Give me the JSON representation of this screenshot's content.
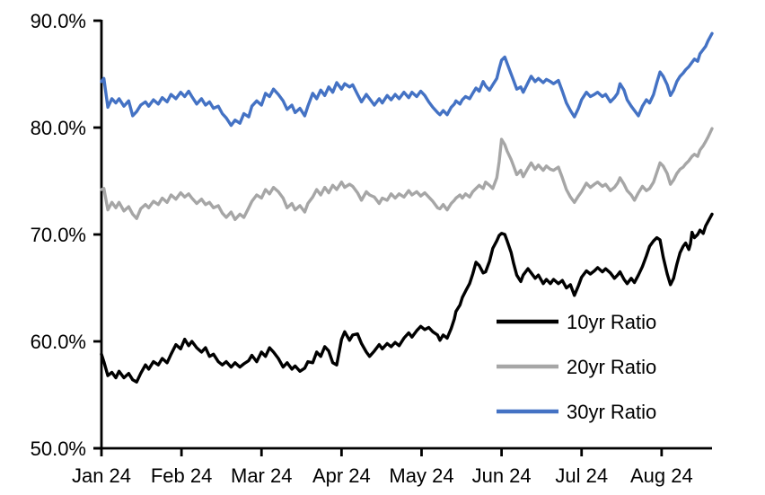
{
  "chart": {
    "background": "#FFFFFF",
    "axis_color": "#000000",
    "legend": [
      {
        "label": "10yr Ratio",
        "color": "#000000"
      },
      {
        "label": "20yr Ratio",
        "color": "#A6A6A6"
      },
      {
        "label": "30yr Ratio",
        "color": "#4472C4"
      }
    ]
  },
  "chart_data": {
    "type": "line",
    "title": "",
    "xlabel": "",
    "ylabel": "",
    "grid": false,
    "legend_position": "inside-lower-right",
    "x_unit": "months since Jan 1 2024",
    "xlim": [
      0,
      7.63
    ],
    "ylim": [
      50,
      90
    ],
    "y_ticks": [
      50,
      60,
      70,
      80,
      90
    ],
    "y_tick_labels": [
      "50.0%",
      "60.0%",
      "70.0%",
      "80.0%",
      "90.0%"
    ],
    "x_ticks": [
      0,
      1,
      2,
      3,
      4,
      5,
      6,
      7
    ],
    "x_tick_labels": [
      "Jan 24",
      "Feb 24",
      "Mar 24",
      "Apr 24",
      "May 24",
      "Jun 24",
      "Jul 24",
      "Aug 24"
    ],
    "x": [
      0.0,
      0.03,
      0.08,
      0.13,
      0.18,
      0.22,
      0.28,
      0.34,
      0.39,
      0.44,
      0.49,
      0.55,
      0.59,
      0.65,
      0.71,
      0.76,
      0.82,
      0.87,
      0.93,
      0.99,
      1.04,
      1.09,
      1.13,
      1.19,
      1.25,
      1.3,
      1.35,
      1.4,
      1.46,
      1.51,
      1.56,
      1.62,
      1.67,
      1.73,
      1.78,
      1.84,
      1.88,
      1.94,
      2.0,
      2.05,
      2.1,
      2.15,
      2.21,
      2.27,
      2.32,
      2.38,
      2.42,
      2.48,
      2.54,
      2.58,
      2.64,
      2.69,
      2.74,
      2.79,
      2.84,
      2.89,
      2.94,
      3.0,
      3.04,
      3.1,
      3.14,
      3.2,
      3.25,
      3.31,
      3.35,
      3.41,
      3.47,
      3.51,
      3.57,
      3.62,
      3.67,
      3.72,
      3.78,
      3.84,
      3.88,
      3.94,
      3.99,
      4.04,
      4.09,
      4.14,
      4.2,
      4.23,
      4.27,
      4.32,
      4.37,
      4.41,
      4.43,
      4.48,
      4.51,
      4.55,
      4.6,
      4.64,
      4.68,
      4.72,
      4.77,
      4.8,
      4.85,
      4.89,
      4.94,
      4.97,
      5.0,
      5.04,
      5.07,
      5.12,
      5.15,
      5.19,
      5.24,
      5.27,
      5.33,
      5.37,
      5.42,
      5.46,
      5.52,
      5.56,
      5.61,
      5.65,
      5.71,
      5.76,
      5.81,
      5.86,
      5.91,
      5.96,
      6.0,
      6.06,
      6.11,
      6.16,
      6.2,
      6.26,
      6.3,
      6.36,
      6.41,
      6.45,
      6.48,
      6.53,
      6.57,
      6.62,
      6.66,
      6.71,
      6.76,
      6.81,
      6.85,
      6.9,
      6.94,
      6.98,
      7.02,
      7.07,
      7.11,
      7.15,
      7.19,
      7.23,
      7.27,
      7.3,
      7.34,
      7.36,
      7.38,
      7.41,
      7.45,
      7.48,
      7.52,
      7.55,
      7.58,
      7.63
    ],
    "series": [
      {
        "name": "10yr Ratio",
        "color": "#000000",
        "values": [
          58.8,
          58.1,
          56.8,
          57.1,
          56.6,
          57.2,
          56.6,
          57.0,
          56.4,
          56.2,
          57.0,
          57.8,
          57.4,
          58.1,
          57.8,
          58.4,
          58.0,
          58.8,
          59.7,
          59.3,
          60.2,
          59.6,
          60.0,
          59.4,
          59.0,
          59.4,
          58.6,
          58.8,
          58.1,
          57.8,
          58.1,
          57.6,
          58.0,
          57.6,
          57.9,
          58.2,
          58.7,
          58.1,
          59.0,
          58.6,
          59.4,
          59.0,
          58.4,
          57.6,
          58.0,
          57.4,
          57.7,
          57.2,
          57.5,
          58.1,
          58.0,
          59.0,
          58.6,
          59.5,
          59.1,
          58.0,
          57.8,
          60.2,
          60.9,
          60.1,
          60.6,
          60.7,
          59.8,
          59.0,
          58.6,
          59.1,
          59.7,
          59.3,
          59.8,
          59.5,
          59.9,
          59.6,
          60.3,
          60.8,
          60.4,
          61.0,
          61.4,
          61.1,
          61.3,
          60.9,
          60.6,
          60.1,
          60.6,
          60.3,
          61.2,
          62.1,
          62.8,
          63.4,
          64.1,
          64.7,
          65.4,
          66.3,
          67.4,
          67.1,
          66.4,
          66.5,
          67.5,
          68.7,
          69.4,
          69.9,
          70.1,
          70.0,
          69.4,
          68.3,
          67.3,
          66.2,
          65.6,
          66.2,
          66.8,
          66.4,
          65.9,
          66.2,
          65.4,
          65.8,
          65.4,
          65.8,
          65.4,
          65.7,
          65.0,
          65.3,
          64.3,
          65.2,
          66.0,
          66.6,
          66.3,
          66.6,
          66.9,
          66.5,
          66.8,
          66.4,
          65.9,
          66.2,
          66.5,
          65.8,
          65.4,
          65.9,
          65.5,
          66.2,
          67.0,
          68.0,
          68.9,
          69.4,
          69.7,
          69.5,
          67.9,
          66.3,
          65.3,
          65.9,
          67.2,
          68.3,
          68.9,
          69.2,
          68.6,
          69.1,
          70.2,
          69.7,
          70.0,
          70.4,
          70.1,
          70.8,
          71.2,
          71.9
        ]
      },
      {
        "name": "20yr Ratio",
        "color": "#A6A6A6",
        "values": [
          74.2,
          74.3,
          72.3,
          73.0,
          72.5,
          73.0,
          72.2,
          72.6,
          71.9,
          71.5,
          72.4,
          72.8,
          72.5,
          73.1,
          72.8,
          73.4,
          73.0,
          73.7,
          73.3,
          73.9,
          73.5,
          73.8,
          73.4,
          72.9,
          73.3,
          72.8,
          73.0,
          72.5,
          72.7,
          72.0,
          71.6,
          72.1,
          71.4,
          71.9,
          71.6,
          72.5,
          73.1,
          73.7,
          73.4,
          74.2,
          73.8,
          74.4,
          74.0,
          73.4,
          72.5,
          72.9,
          72.3,
          72.7,
          72.1,
          72.9,
          73.5,
          74.2,
          73.7,
          74.4,
          73.9,
          74.6,
          74.2,
          74.9,
          74.4,
          74.7,
          74.5,
          73.9,
          73.2,
          74.0,
          73.7,
          73.5,
          72.9,
          73.4,
          73.2,
          73.8,
          73.4,
          73.8,
          73.5,
          74.1,
          73.7,
          74.0,
          73.6,
          73.9,
          73.5,
          73.1,
          72.5,
          72.4,
          72.8,
          72.3,
          72.9,
          73.2,
          73.4,
          73.7,
          73.4,
          73.8,
          73.5,
          74.0,
          74.3,
          74.6,
          74.3,
          74.9,
          74.6,
          74.3,
          75.3,
          76.8,
          78.9,
          78.4,
          77.8,
          77.0,
          76.4,
          75.6,
          76.0,
          75.4,
          76.2,
          76.7,
          76.1,
          76.5,
          76.0,
          76.4,
          76.1,
          76.0,
          76.3,
          75.3,
          74.2,
          73.5,
          73.0,
          73.6,
          74.0,
          74.8,
          74.4,
          74.7,
          74.9,
          74.5,
          74.7,
          74.1,
          74.4,
          74.8,
          75.3,
          74.7,
          74.1,
          73.7,
          73.2,
          73.9,
          74.5,
          74.1,
          74.3,
          74.9,
          75.8,
          76.7,
          76.4,
          75.7,
          74.7,
          75.1,
          75.7,
          76.1,
          76.3,
          76.6,
          76.9,
          77.1,
          77.3,
          77.5,
          77.3,
          77.9,
          78.3,
          78.7,
          79.1,
          79.9
        ]
      },
      {
        "name": "30yr Ratio",
        "color": "#4472C4",
        "values": [
          84.3,
          84.6,
          81.9,
          82.7,
          82.3,
          82.7,
          82.0,
          82.5,
          81.1,
          81.5,
          82.1,
          82.4,
          82.0,
          82.6,
          82.2,
          82.8,
          82.4,
          83.1,
          82.7,
          83.3,
          82.9,
          83.4,
          82.9,
          82.2,
          82.7,
          82.1,
          82.4,
          81.8,
          82.0,
          81.3,
          80.9,
          80.2,
          80.7,
          80.4,
          81.3,
          81.0,
          82.0,
          82.5,
          82.1,
          83.2,
          82.9,
          83.6,
          83.1,
          82.5,
          81.7,
          82.1,
          81.4,
          81.8,
          81.1,
          82.0,
          83.2,
          82.7,
          83.5,
          83.0,
          83.8,
          83.3,
          84.2,
          83.6,
          84.1,
          83.8,
          84.0,
          83.1,
          82.4,
          83.1,
          82.7,
          82.1,
          82.7,
          82.3,
          83.0,
          82.6,
          83.1,
          82.7,
          83.3,
          82.8,
          83.3,
          82.9,
          83.4,
          83.0,
          82.4,
          81.9,
          81.4,
          81.2,
          81.6,
          81.2,
          81.9,
          82.2,
          82.5,
          82.2,
          82.6,
          82.9,
          82.7,
          83.2,
          83.7,
          83.4,
          84.3,
          83.9,
          83.5,
          84.0,
          84.6,
          85.5,
          86.3,
          86.6,
          86.0,
          85.0,
          84.4,
          83.6,
          83.8,
          83.3,
          84.2,
          84.8,
          84.3,
          84.6,
          84.2,
          84.5,
          84.3,
          84.1,
          84.4,
          83.4,
          82.3,
          81.6,
          81.0,
          81.8,
          82.6,
          83.3,
          82.9,
          83.1,
          83.3,
          82.9,
          83.1,
          82.4,
          82.8,
          83.2,
          84.1,
          83.5,
          82.6,
          82.0,
          81.6,
          81.1,
          82.0,
          82.6,
          82.3,
          83.1,
          84.2,
          85.2,
          84.8,
          84.0,
          83.0,
          83.5,
          84.3,
          84.8,
          85.1,
          85.4,
          85.7,
          85.9,
          86.1,
          86.4,
          86.2,
          86.9,
          87.3,
          87.6,
          88.1,
          88.8
        ]
      }
    ]
  }
}
